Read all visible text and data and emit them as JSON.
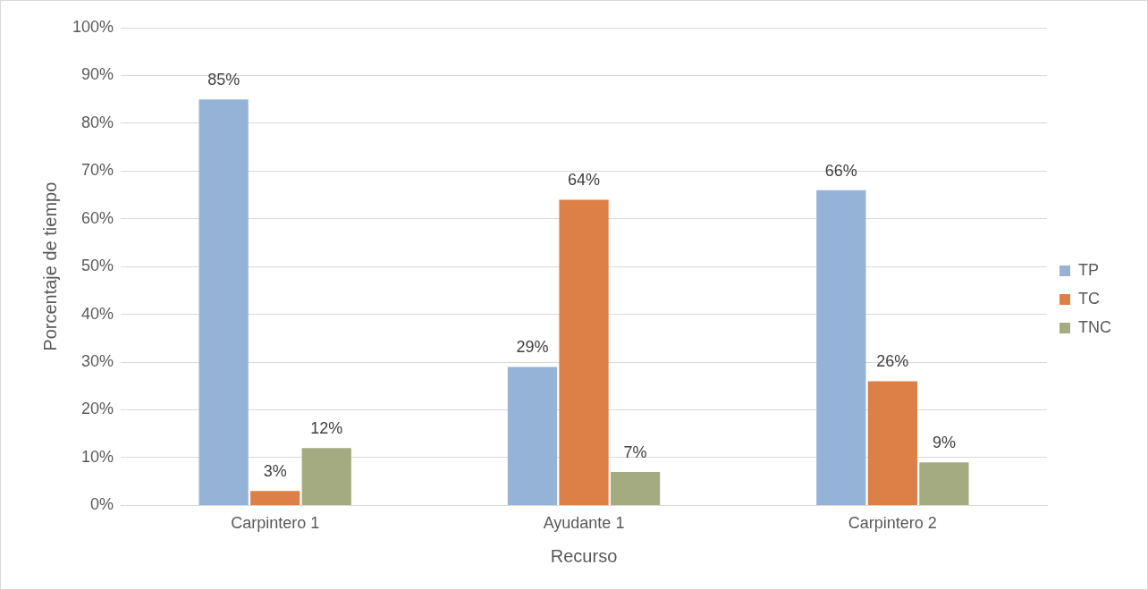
{
  "chart_data": {
    "type": "bar",
    "xlabel": "Recurso",
    "ylabel": "Porcentaje de tiempo",
    "categories": [
      "Carpintero 1",
      "Ayudante 1",
      "Carpintero 2"
    ],
    "series": [
      {
        "name": "TP",
        "color": "#95b3d7",
        "values": [
          85,
          29,
          66
        ],
        "value_labels": [
          "85%",
          "29%",
          "66%"
        ]
      },
      {
        "name": "TC",
        "color": "#dd8047",
        "values": [
          3,
          64,
          26
        ],
        "value_labels": [
          "3%",
          "64%",
          "26%"
        ]
      },
      {
        "name": "TNC",
        "color": "#a5ab81",
        "values": [
          12,
          7,
          9
        ],
        "value_labels": [
          "12%",
          "7%",
          "9%"
        ]
      }
    ],
    "ylim": [
      0,
      100
    ],
    "yticks": [
      {
        "value": 0,
        "label": "0%"
      },
      {
        "value": 10,
        "label": "10%"
      },
      {
        "value": 20,
        "label": "20%"
      },
      {
        "value": 30,
        "label": "30%"
      },
      {
        "value": 40,
        "label": "40%"
      },
      {
        "value": 50,
        "label": "50%"
      },
      {
        "value": 60,
        "label": "60%"
      },
      {
        "value": 70,
        "label": "70%"
      },
      {
        "value": 80,
        "label": "80%"
      },
      {
        "value": 90,
        "label": "90%"
      },
      {
        "value": 100,
        "label": "100%"
      }
    ],
    "grid": "y",
    "legend": "right"
  }
}
